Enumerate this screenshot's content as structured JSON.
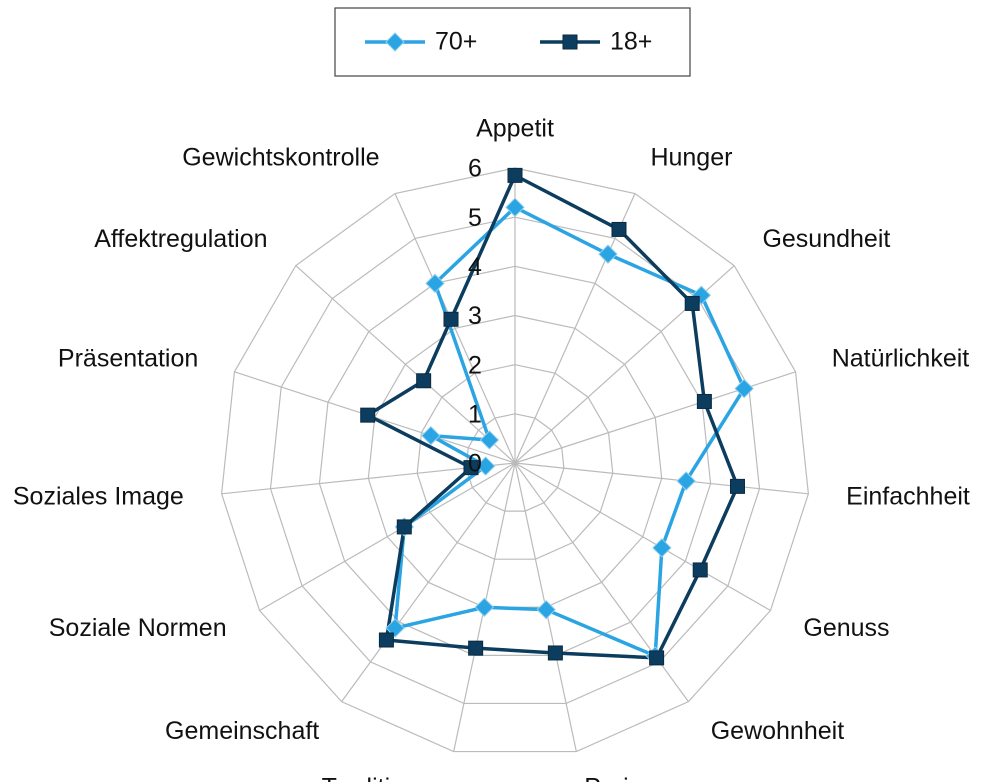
{
  "chart_data": {
    "type": "radar",
    "categories": [
      "Appetit",
      "Hunger",
      "Gesundheit",
      "Natürlichkeit",
      "Einfachheit",
      "Genuss",
      "Gewohnheit",
      "Preis",
      "Traditionen",
      "Gemeinschaft",
      "Soziale Normen",
      "Soziales Image",
      "Präsentation",
      "Affektregulation",
      "Gewichtskontrolle"
    ],
    "series": [
      {
        "name": "70+",
        "color": "#2aa4e2",
        "marker": "diamond",
        "values": [
          5.2,
          4.65,
          5.1,
          4.9,
          3.5,
          3.45,
          4.85,
          3.05,
          3.0,
          4.15,
          2.6,
          0.6,
          1.8,
          0.7,
          4.0
        ]
      },
      {
        "name": "18+",
        "color": "#0c3d5e",
        "marker": "square",
        "values": [
          5.85,
          5.2,
          4.85,
          4.05,
          4.55,
          4.35,
          4.9,
          3.95,
          3.85,
          4.45,
          2.6,
          0.9,
          3.15,
          2.5,
          3.2
        ]
      }
    ],
    "ylim": [
      0,
      6
    ],
    "yticks": [
      0,
      1,
      2,
      3,
      4,
      5,
      6
    ],
    "grid": true,
    "legend": "top"
  }
}
